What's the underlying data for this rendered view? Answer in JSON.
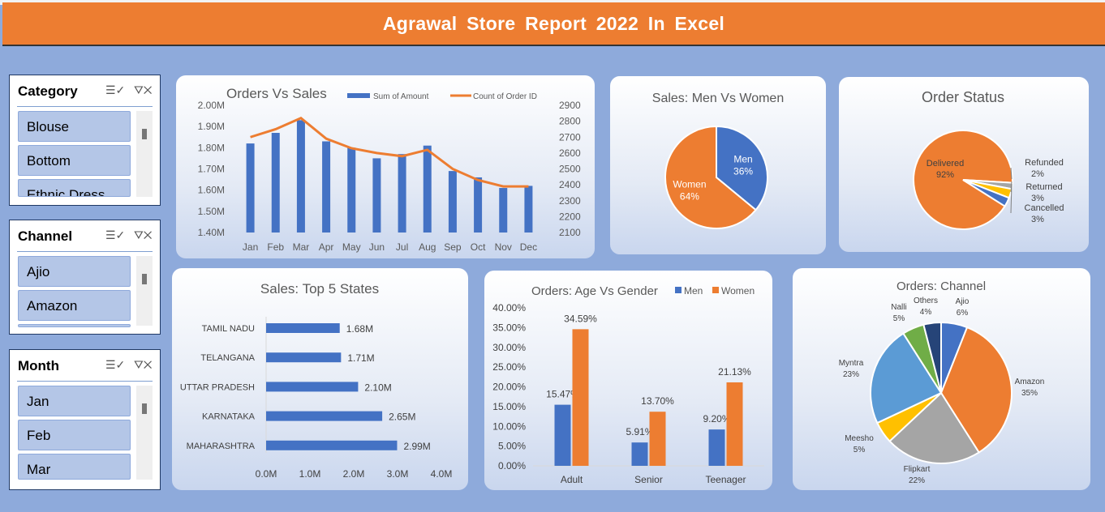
{
  "banner": {
    "title": "Agrawal Store Report 2022 In Excel"
  },
  "slicers": [
    {
      "title": "Category",
      "items": [
        "Blouse",
        "Bottom",
        "Ethnic Dress"
      ]
    },
    {
      "title": "Channel",
      "items": [
        "Ajio",
        "Amazon",
        ""
      ]
    },
    {
      "title": "Month",
      "items": [
        "Jan",
        "Feb",
        "Mar"
      ]
    }
  ],
  "colors": {
    "blue": "#4472c4",
    "orange": "#ed7d31",
    "gray": "#a5a5a5",
    "yellow": "#ffc000",
    "lightblue": "#5b9bd5",
    "green": "#70ad47",
    "navy": "#264478"
  },
  "chart_data": [
    {
      "type": "bar",
      "title": "Orders Vs Sales",
      "categories": [
        "Jan",
        "Feb",
        "Mar",
        "Apr",
        "May",
        "Jun",
        "Jul",
        "Aug",
        "Sep",
        "Oct",
        "Nov",
        "Dec"
      ],
      "series": [
        {
          "name": "Sum of Amount",
          "type": "bar",
          "axis": "left",
          "values": [
            1.82,
            1.87,
            1.93,
            1.83,
            1.8,
            1.75,
            1.77,
            1.81,
            1.69,
            1.66,
            1.61,
            1.62
          ]
        },
        {
          "name": "Count of Order ID",
          "type": "line",
          "axis": "right",
          "values": [
            2700,
            2750,
            2820,
            2690,
            2630,
            2600,
            2580,
            2620,
            2500,
            2430,
            2390,
            2390
          ]
        }
      ],
      "yticks_left": [
        "2.00M",
        "1.90M",
        "1.80M",
        "1.70M",
        "1.60M",
        "1.50M",
        "1.40M"
      ],
      "yticks_right": [
        "2900",
        "2800",
        "2700",
        "2600",
        "2500",
        "2400",
        "2300",
        "2200",
        "2100"
      ],
      "ylim_left": [
        1.4,
        2.0
      ],
      "ylim_right": [
        2100,
        2900
      ]
    },
    {
      "type": "pie",
      "title": "Sales: Men Vs Women",
      "labels": [
        "Men",
        "Women"
      ],
      "values": [
        36,
        64
      ],
      "value_labels": [
        "36%",
        "64%"
      ]
    },
    {
      "type": "pie",
      "title": "Order Status",
      "labels": [
        "Delivered",
        "Refunded",
        "Returned",
        "Cancelled"
      ],
      "values": [
        92,
        2,
        3,
        3
      ],
      "value_labels": [
        "92%",
        "2%",
        "3%",
        "3%"
      ]
    },
    {
      "type": "bar",
      "orientation": "horizontal",
      "title": "Sales: Top 5 States",
      "categories": [
        "TAMIL NADU",
        "TELANGANA",
        "UTTAR PRADESH",
        "KARNATAKA",
        "MAHARASHTRA"
      ],
      "values": [
        1.68,
        1.71,
        2.1,
        2.65,
        2.99
      ],
      "value_labels": [
        "1.68M",
        "1.71M",
        "2.10M",
        "2.65M",
        "2.99M"
      ],
      "xticks": [
        "0.0M",
        "1.0M",
        "2.0M",
        "3.0M",
        "4.0M"
      ],
      "xlim": [
        0,
        4.0
      ]
    },
    {
      "type": "bar",
      "title": "Orders: Age Vs Gender",
      "categories": [
        "Adult",
        "Senior",
        "Teenager"
      ],
      "series": [
        {
          "name": "Men",
          "values": [
            15.47,
            5.91,
            9.2
          ],
          "value_labels": [
            "15.47%",
            "5.91%",
            "9.20%"
          ]
        },
        {
          "name": "Women",
          "values": [
            34.59,
            13.7,
            21.13
          ],
          "value_labels": [
            "34.59%",
            "13.70%",
            "21.13%"
          ]
        }
      ],
      "yticks": [
        "40.00%",
        "35.00%",
        "30.00%",
        "25.00%",
        "20.00%",
        "15.00%",
        "10.00%",
        "5.00%",
        "0.00%"
      ],
      "ylim": [
        0,
        40
      ]
    },
    {
      "type": "pie",
      "title": "Orders: Channel",
      "labels": [
        "Ajio",
        "Amazon",
        "Flipkart",
        "Meesho",
        "Myntra",
        "Nalli",
        "Others"
      ],
      "values": [
        6,
        35,
        22,
        5,
        23,
        5,
        4
      ],
      "value_labels": [
        "6%",
        "35%",
        "22%",
        "5%",
        "23%",
        "5%",
        "4%"
      ]
    }
  ]
}
